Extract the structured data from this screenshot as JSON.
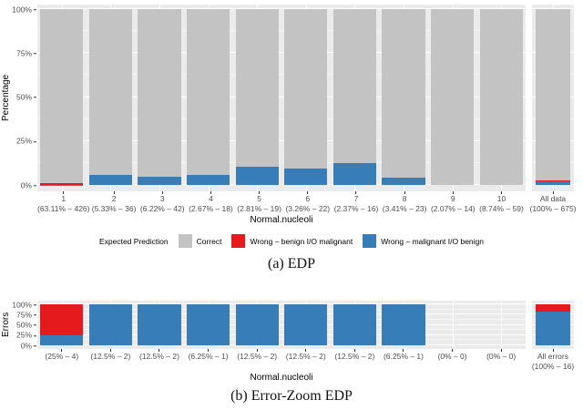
{
  "captions": {
    "a": "(a) EDP",
    "b": "(b) Error-Zoom EDP"
  },
  "legend": {
    "title": "Expected Prediction",
    "items": [
      {
        "label": "Correct",
        "color": "#C3C3C3"
      },
      {
        "label": "Wrong – benign I/O malignant",
        "color": "#E41A1C"
      },
      {
        "label": "Wrong – malignant I/O benign",
        "color": "#377EB8"
      }
    ]
  },
  "style": {
    "panel_bg": "#EBEBEB",
    "grid_color": "#FFFFFF",
    "gray": "#C3C3C3",
    "red": "#E41A1C",
    "blue": "#377EB8",
    "tick_text": "#4D4D4D"
  },
  "chart_data": [
    {
      "id": "edp",
      "type": "bar",
      "stacked": true,
      "ylabel": "Percentage",
      "xlabel": "Normal.nucleoli",
      "ylim": [
        0,
        100
      ],
      "yticks": [
        0,
        25,
        50,
        75,
        100
      ],
      "ytick_labels": [
        "0%",
        "25%",
        "50%",
        "75%",
        "100%"
      ],
      "grid": "white major+minor on gray panel",
      "legend_position": "none (shared below)",
      "categories": [
        "1",
        "2",
        "3",
        "4",
        "5",
        "6",
        "7",
        "8",
        "9",
        "10"
      ],
      "sublabels": [
        "(63.11% – 426)",
        "(5.33% – 36)",
        "(6.22% – 42)",
        "(2.67% – 18)",
        "(2.81% – 19)",
        "(3.26% – 22)",
        "(2.37% – 16)",
        "(3.41% – 23)",
        "(2.07% – 14)",
        "(8.74% – 59)"
      ],
      "series": [
        {
          "name": "Wrong – malignant I/O benign",
          "color": "#377EB8",
          "values": [
            0.23,
            5.56,
            4.76,
            5.56,
            10.53,
            9.09,
            12.5,
            4.35,
            0,
            0
          ]
        },
        {
          "name": "Wrong – benign I/O malignant",
          "color": "#E41A1C",
          "values": [
            0.7,
            0,
            0,
            0,
            0,
            0,
            0,
            0,
            0,
            0
          ]
        },
        {
          "name": "Correct",
          "color": "#C3C3C3",
          "values": [
            99.07,
            94.44,
            95.24,
            94.44,
            89.47,
            90.91,
            87.5,
            95.65,
            100,
            100
          ]
        }
      ],
      "extra_facet": {
        "category": "All data",
        "sublabel": "(100% – 675)",
        "values": [
          1.93,
          0.44,
          97.63
        ]
      }
    },
    {
      "id": "error-zoom-edp",
      "type": "bar",
      "stacked": true,
      "ylabel": "Errors",
      "xlabel": "Normal.nucleoli",
      "ylim": [
        0,
        100
      ],
      "yticks": [
        0,
        25,
        50,
        75,
        100
      ],
      "ytick_labels": [
        "0%",
        "25%",
        "50%",
        "75%",
        "100%"
      ],
      "grid": "white major+minor on gray panel",
      "legend_position": "none",
      "categories": [
        "(25% – 4)",
        "(12.5% – 2)",
        "(12.5% – 2)",
        "(6.25% – 1)",
        "(12.5% – 2)",
        "(12.5% – 2)",
        "(12.5% – 2)",
        "(6.25% – 1)",
        "(0% – 0)",
        "(0% – 0)"
      ],
      "sublabels": [
        "",
        "",
        "",
        "",
        "",
        "",
        "",
        "",
        "",
        ""
      ],
      "series": [
        {
          "name": "Wrong – malignant I/O benign",
          "color": "#377EB8",
          "values": [
            25,
            100,
            100,
            100,
            100,
            100,
            100,
            100,
            0,
            0
          ]
        },
        {
          "name": "Wrong – benign I/O malignant",
          "color": "#E41A1C",
          "values": [
            75,
            0,
            0,
            0,
            0,
            0,
            0,
            0,
            0,
            0
          ]
        }
      ],
      "extra_facet": {
        "category": "All errors",
        "sublabel": "(100% – 16)",
        "values": [
          81.25,
          18.75
        ]
      }
    }
  ]
}
